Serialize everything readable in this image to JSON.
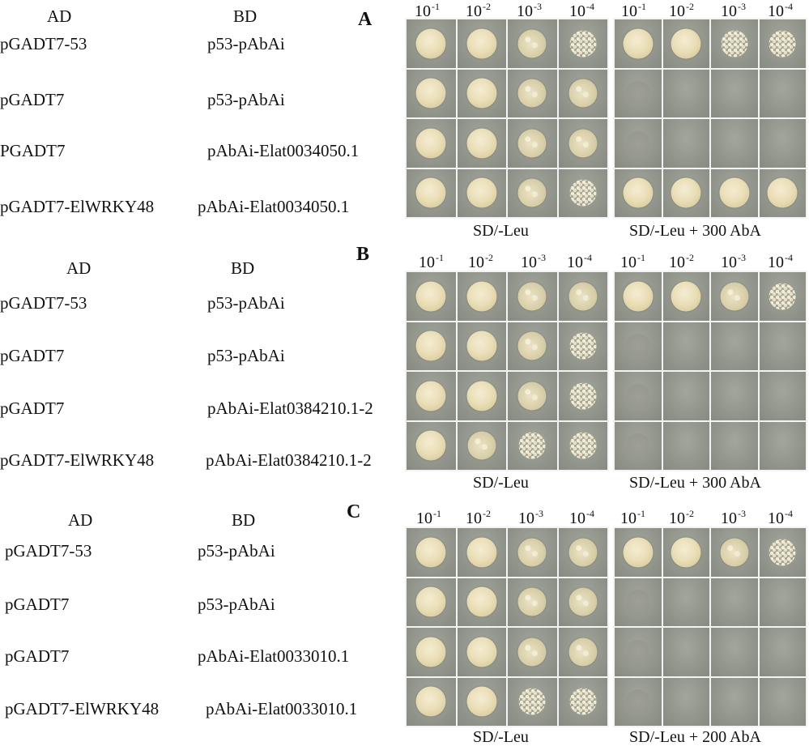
{
  "column_headers": {
    "ad": "AD",
    "bd": "BD"
  },
  "dilution": {
    "base": "10",
    "exponents": [
      "-1",
      "-2",
      "-3",
      "-4"
    ]
  },
  "panels": [
    {
      "letter": "A",
      "rows": [
        {
          "ad": "pGADT7-53",
          "bd": "p53-pAbAi"
        },
        {
          "ad": "pGADT7",
          "bd": "p53-pAbAi"
        },
        {
          "ad": "PGADT7",
          "bd": "pAbAi-Elat0034050.1"
        },
        {
          "ad": "pGADT7-ElWRKY48",
          "bd": "pAbAi-Elat0034050.1"
        }
      ],
      "media": [
        "SD/-Leu",
        "SD/-Leu + 300 AbA"
      ],
      "growth": [
        [
          [
            "heavy",
            "heavy",
            "medium",
            "sparse"
          ],
          [
            "heavy",
            "heavy",
            "sparse",
            "sparse"
          ]
        ],
        [
          [
            "heavy",
            "heavy",
            "medium",
            "medium"
          ],
          [
            "trace",
            "none",
            "none",
            "none"
          ]
        ],
        [
          [
            "heavy",
            "heavy",
            "medium",
            "medium"
          ],
          [
            "trace",
            "none",
            "none",
            "none"
          ]
        ],
        [
          [
            "heavy",
            "heavy",
            "medium",
            "sparse"
          ],
          [
            "heavy",
            "heavy",
            "heavy",
            "heavy"
          ]
        ]
      ]
    },
    {
      "letter": "B",
      "rows": [
        {
          "ad": "pGADT7-53",
          "bd": "p53-pAbAi"
        },
        {
          "ad": "pGADT7",
          "bd": "p53-pAbAi"
        },
        {
          "ad": "pGADT7",
          "bd": "pAbAi-Elat0384210.1-2"
        },
        {
          "ad": "pGADT7-ElWRKY48",
          "bd": "pAbAi-Elat0384210.1-2"
        }
      ],
      "media": [
        "SD/-Leu",
        "SD/-Leu + 300 AbA"
      ],
      "growth": [
        [
          [
            "heavy",
            "heavy",
            "medium",
            "medium"
          ],
          [
            "heavy",
            "heavy",
            "medium",
            "sparse"
          ]
        ],
        [
          [
            "heavy",
            "heavy",
            "medium",
            "sparse"
          ],
          [
            "trace",
            "none",
            "none",
            "none"
          ]
        ],
        [
          [
            "heavy",
            "heavy",
            "medium",
            "sparse"
          ],
          [
            "trace",
            "none",
            "none",
            "none"
          ]
        ],
        [
          [
            "heavy",
            "medium",
            "sparse",
            "sparse"
          ],
          [
            "trace",
            "none",
            "none",
            "none"
          ]
        ]
      ]
    },
    {
      "letter": "C",
      "rows": [
        {
          "ad": "pGADT7-53",
          "bd": "p53-pAbAi"
        },
        {
          "ad": "pGADT7",
          "bd": "p53-pAbAi"
        },
        {
          "ad": "pGADT7",
          "bd": "pAbAi-Elat0033010.1"
        },
        {
          "ad": "pGADT7-ElWRKY48",
          "bd": "pAbAi-Elat0033010.1"
        }
      ],
      "media": [
        "SD/-Leu",
        "SD/-Leu + 200 AbA"
      ],
      "growth": [
        [
          [
            "heavy",
            "heavy",
            "medium",
            "medium"
          ],
          [
            "heavy",
            "heavy",
            "medium",
            "sparse"
          ]
        ],
        [
          [
            "heavy",
            "heavy",
            "medium",
            "medium"
          ],
          [
            "trace",
            "none",
            "none",
            "none"
          ]
        ],
        [
          [
            "heavy",
            "heavy",
            "medium",
            "medium"
          ],
          [
            "trace",
            "none",
            "none",
            "none"
          ]
        ],
        [
          [
            "heavy",
            "heavy",
            "sparse",
            "sparse"
          ],
          [
            "trace",
            "none",
            "none",
            "none"
          ]
        ]
      ]
    }
  ]
}
